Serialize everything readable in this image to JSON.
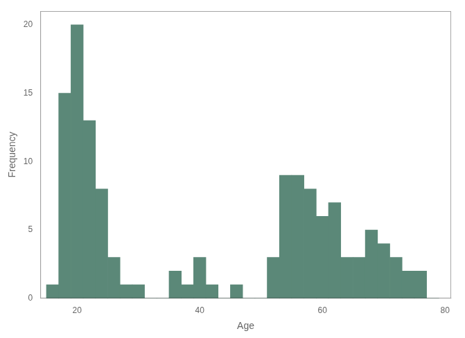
{
  "chart_data": {
    "type": "histogram",
    "bins": [
      15,
      17,
      19,
      21,
      23,
      25,
      27,
      29,
      31,
      33,
      35,
      37,
      39,
      41,
      43,
      45,
      47,
      49,
      51,
      53,
      55,
      57,
      59,
      61,
      63,
      65,
      67,
      69,
      71,
      73,
      75,
      77,
      79
    ],
    "values": [
      1,
      15,
      20,
      13,
      8,
      3,
      1,
      1,
      0,
      0,
      2,
      1,
      3,
      1,
      0,
      1,
      0,
      0,
      3,
      9,
      9,
      8,
      6,
      7,
      3,
      3,
      5,
      4,
      3,
      2,
      2,
      0
    ],
    "color": "#5b8878",
    "xlabel": "Age",
    "ylabel": "Frequency",
    "xlim": [
      14,
      81
    ],
    "xticks": [
      20,
      40,
      60,
      80
    ],
    "ylim": [
      0,
      21
    ],
    "yticks": [
      0,
      5,
      10,
      15,
      20
    ],
    "grid": false
  }
}
